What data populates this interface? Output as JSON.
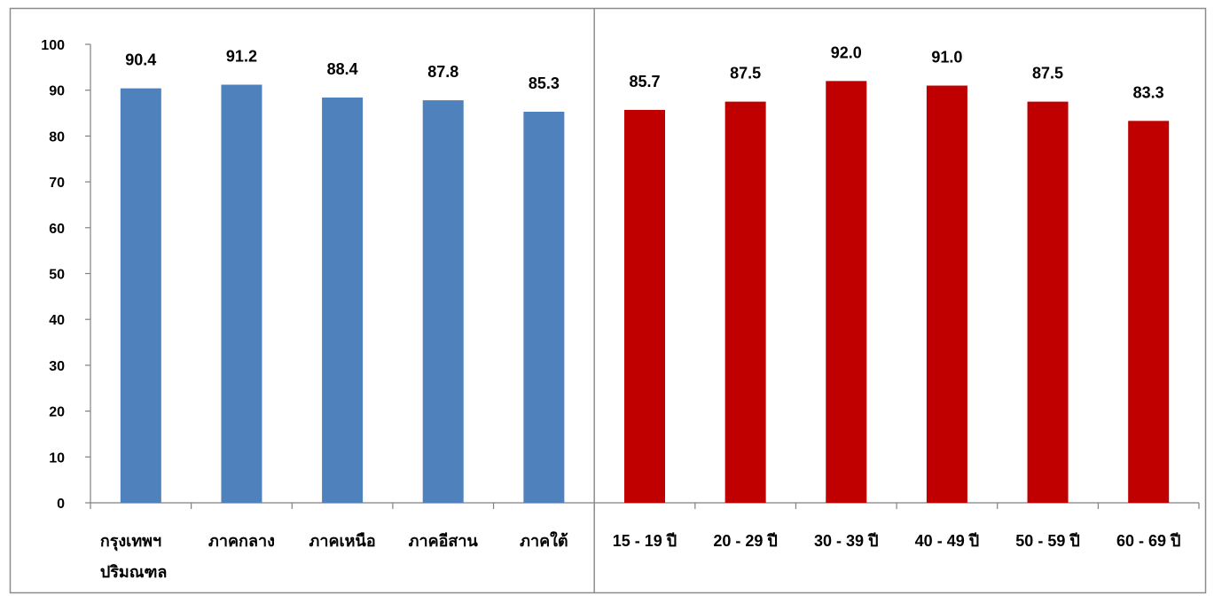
{
  "chart_data": {
    "type": "bar",
    "ylim": [
      0,
      100
    ],
    "yticks": [
      0,
      10,
      20,
      30,
      40,
      50,
      60,
      70,
      80,
      90,
      100
    ],
    "grid": false,
    "groups": [
      {
        "color": "#4F81BD",
        "categories": [
          [
            "กรุงเทพฯ",
            "ปริมณฑล"
          ],
          [
            "ภาคกลาง"
          ],
          [
            "ภาคเหนือ"
          ],
          [
            "ภาคอีสาน"
          ],
          [
            "ภาคใต้"
          ]
        ],
        "values": [
          90.4,
          91.2,
          88.4,
          87.8,
          85.3
        ],
        "labels": [
          "90.4",
          "91.2",
          "88.4",
          "87.8",
          "85.3"
        ]
      },
      {
        "color": "#C00000",
        "categories": [
          [
            "15 - 19 ปี"
          ],
          [
            "20 - 29 ปี"
          ],
          [
            "30 - 39 ปี"
          ],
          [
            "40 - 49 ปี"
          ],
          [
            "50 - 59 ปี"
          ],
          [
            "60 - 69 ปี"
          ]
        ],
        "values": [
          85.7,
          87.5,
          92.0,
          91.0,
          87.5,
          83.3
        ],
        "labels": [
          "85.7",
          "87.5",
          "92.0",
          "91.0",
          "87.5",
          "83.3"
        ]
      }
    ]
  }
}
